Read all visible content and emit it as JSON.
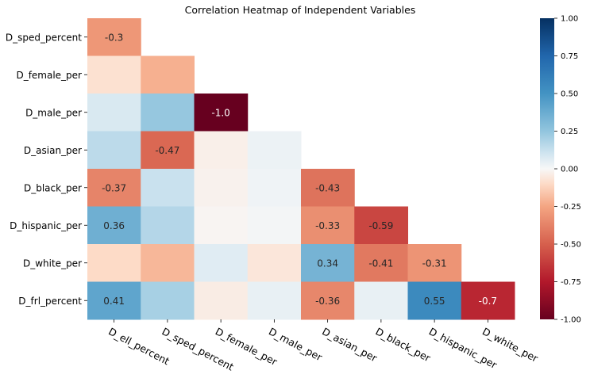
{
  "chart_data": {
    "type": "heatmap",
    "title": "Correlation Heatmap of Independent Variables",
    "row_labels": [
      "D_sped_percent",
      "D_female_per",
      "D_male_per",
      "D_asian_per",
      "D_black_per",
      "D_hispanic_per",
      "D_white_per",
      "D_frl_percent"
    ],
    "col_labels": [
      "D_ell_percent",
      "D_sped_percent",
      "D_female_per",
      "D_male_per",
      "D_asian_per",
      "D_black_per",
      "D_hispanic_per",
      "D_white_per"
    ],
    "values": [
      [
        -0.3
      ],
      [
        -0.08,
        -0.22
      ],
      [
        0.08,
        0.24,
        -1.0
      ],
      [
        0.15,
        -0.47,
        -0.03,
        0.03
      ],
      [
        -0.37,
        0.12,
        -0.02,
        0.02,
        -0.43
      ],
      [
        0.36,
        0.17,
        -0.01,
        0.01,
        -0.33,
        -0.59
      ],
      [
        -0.1,
        -0.2,
        0.06,
        -0.06,
        0.34,
        -0.41,
        -0.31
      ],
      [
        0.41,
        0.2,
        -0.04,
        0.04,
        -0.36,
        0.04,
        0.55,
        -0.7
      ]
    ],
    "annotations": [
      [
        "-0.3"
      ],
      [
        "",
        ""
      ],
      [
        "",
        "",
        "-1.0"
      ],
      [
        "",
        "-0.47",
        "",
        ""
      ],
      [
        "-0.37",
        "",
        "",
        "",
        "-0.43"
      ],
      [
        "0.36",
        "",
        "",
        "",
        "-0.33",
        "-0.59"
      ],
      [
        "",
        "",
        "",
        "",
        "0.34",
        "-0.41",
        "-0.31"
      ],
      [
        "0.41",
        "",
        "",
        "",
        "-0.36",
        "",
        "0.55",
        "-0.7"
      ]
    ],
    "colorbar": {
      "range": [
        -1.0,
        1.0
      ],
      "ticks": [
        "1.00",
        "0.75",
        "0.50",
        "0.25",
        "0.00",
        "-0.25",
        "-0.50",
        "-0.75",
        "-1.00"
      ],
      "colormap": "RdBu"
    }
  }
}
